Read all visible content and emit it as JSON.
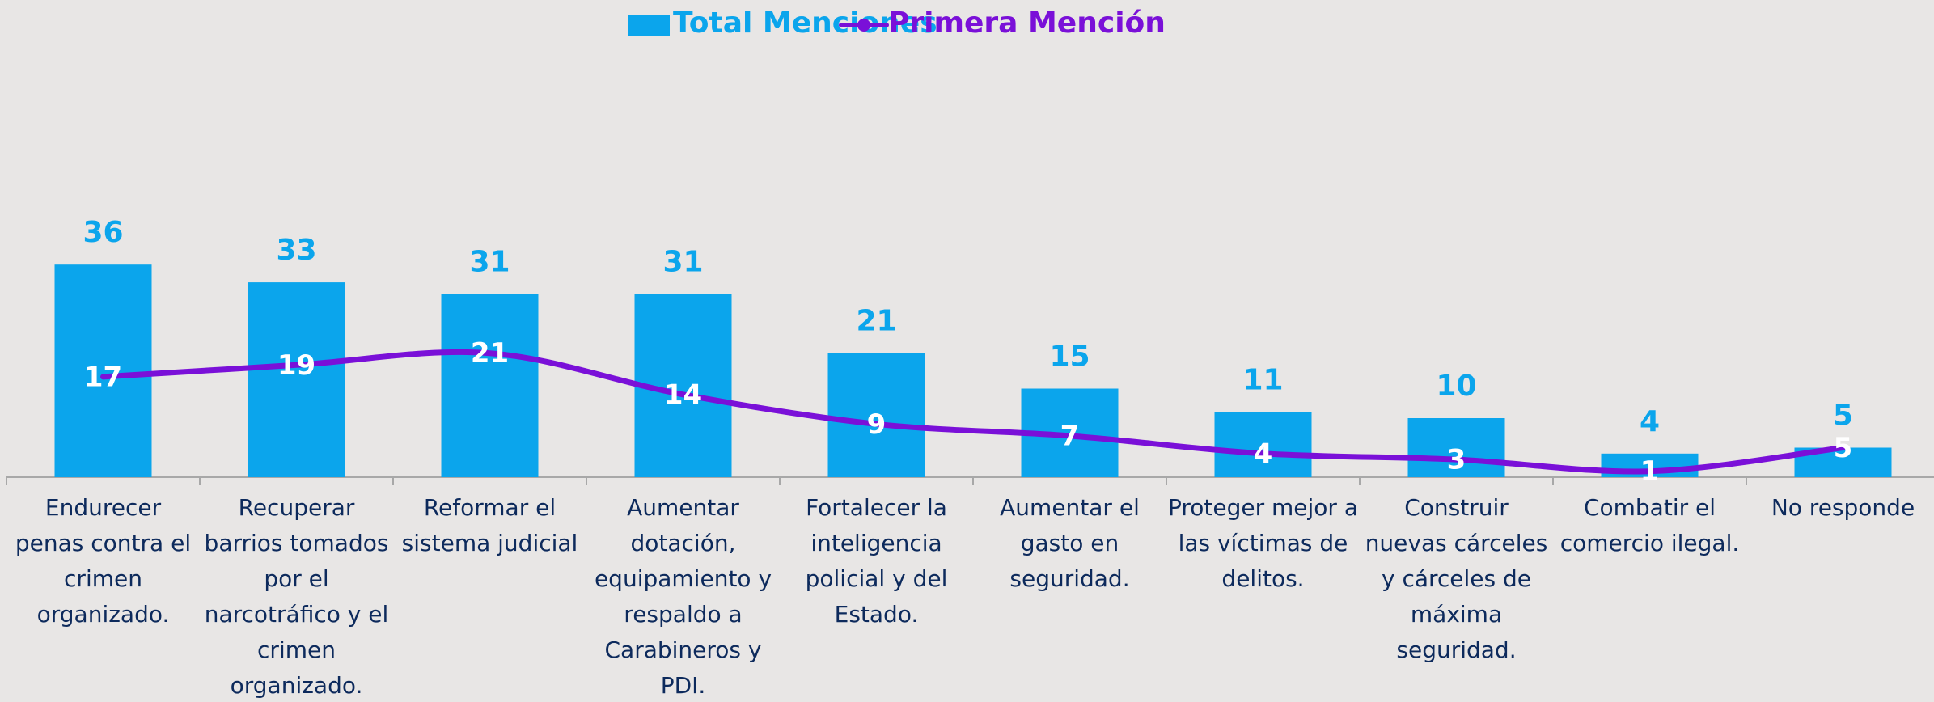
{
  "chart_data": {
    "type": "bar",
    "legend": "top",
    "categories": [
      "Endurecer penas contra el crimen organizado.",
      "Recuperar barrios tomados por el narcotráfico y el crimen organizado.",
      "Reformar el sistema judicial",
      "Aumentar dotación, equipamiento y respaldo a Carabineros y PDI.",
      "Fortalecer la inteligencia policial y del Estado.",
      "Aumentar el gasto en seguridad.",
      "Proteger mejor a las víctimas de delitos.",
      "Construir nuevas cárceles y cárceles de máxima seguridad.",
      "Combatir el comercio ilegal.",
      "No responde"
    ],
    "series": [
      {
        "name": "Total Menciones",
        "type": "bar",
        "color": "#0ba5ec",
        "values": [
          36,
          33,
          31,
          31,
          21,
          15,
          11,
          10,
          4,
          5
        ]
      },
      {
        "name": "Primera Mención",
        "type": "line",
        "color": "#7a10d8",
        "values": [
          17,
          19,
          21,
          14,
          9,
          7,
          4,
          3,
          1,
          5
        ]
      }
    ],
    "ylim": [
      0,
      50
    ]
  }
}
